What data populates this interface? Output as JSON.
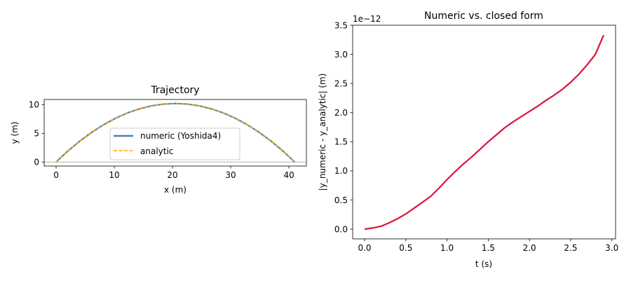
{
  "chart_data": [
    {
      "type": "line",
      "title": "Trajectory",
      "xlabel": "x (m)",
      "ylabel": "y (m)",
      "xlim": [
        -2.05,
        43.0
      ],
      "ylim": [
        -0.7,
        10.9
      ],
      "xticks": [
        0,
        10,
        20,
        30,
        40
      ],
      "yticks": [
        0,
        5,
        10
      ],
      "grid": false,
      "legend_position": "lower center",
      "ground_line": {
        "y": 0,
        "color": "#999999"
      },
      "series": [
        {
          "name": "numeric (Yoshida4)",
          "color": "#4682b4",
          "style": "solid",
          "x": [
            0,
            2.05,
            4.1,
            6.15,
            8.2,
            10.25,
            12.3,
            14.35,
            16.4,
            18.45,
            20.5,
            22.55,
            24.6,
            26.65,
            28.7,
            30.75,
            32.8,
            34.85,
            36.9,
            38.95,
            41.0
          ],
          "y": [
            0,
            1.94,
            3.67,
            5.2,
            6.52,
            7.65,
            8.57,
            9.28,
            9.79,
            10.1,
            10.2,
            10.1,
            9.79,
            9.28,
            8.57,
            7.65,
            6.52,
            5.2,
            3.67,
            1.94,
            0
          ]
        },
        {
          "name": "analytic",
          "color": "#ffa500",
          "style": "dashed",
          "x": [
            0,
            2.05,
            4.1,
            6.15,
            8.2,
            10.25,
            12.3,
            14.35,
            16.4,
            18.45,
            20.5,
            22.55,
            24.6,
            26.65,
            28.7,
            30.75,
            32.8,
            34.85,
            36.9,
            38.95,
            41.0
          ],
          "y": [
            0,
            1.94,
            3.67,
            5.2,
            6.52,
            7.65,
            8.57,
            9.28,
            9.79,
            10.1,
            10.2,
            10.1,
            9.79,
            9.28,
            8.57,
            7.65,
            6.52,
            5.2,
            3.67,
            1.94,
            0
          ]
        }
      ]
    },
    {
      "type": "line",
      "title": "Numeric vs. closed form",
      "xlabel": "t (s)",
      "ylabel": "|y_numeric - y_analytic| (m)",
      "offset_text": "1e−12",
      "xlim": [
        -0.145,
        3.045
      ],
      "ylim": [
        -0.167,
        3.5
      ],
      "xticks": [
        0.0,
        0.5,
        1.0,
        1.5,
        2.0,
        2.5,
        3.0
      ],
      "xtick_labels": [
        "0.0",
        "0.5",
        "1.0",
        "1.5",
        "2.0",
        "2.5",
        "3.0"
      ],
      "yticks": [
        0.0,
        0.5,
        1.0,
        1.5,
        2.0,
        2.5,
        3.0,
        3.5
      ],
      "ytick_labels": [
        "0.0",
        "0.5",
        "1.0",
        "1.5",
        "2.0",
        "2.5",
        "3.0",
        "3.5"
      ],
      "grid": false,
      "series": [
        {
          "color": "#dc143c",
          "style": "solid",
          "x": [
            0.0,
            0.1,
            0.2,
            0.3,
            0.4,
            0.5,
            0.6,
            0.7,
            0.8,
            0.9,
            1.0,
            1.1,
            1.2,
            1.3,
            1.4,
            1.5,
            1.6,
            1.7,
            1.8,
            1.9,
            2.0,
            2.1,
            2.2,
            2.3,
            2.4,
            2.5,
            2.6,
            2.7,
            2.8,
            2.9
          ],
          "y": [
            0.0,
            0.02,
            0.05,
            0.11,
            0.18,
            0.26,
            0.36,
            0.46,
            0.56,
            0.7,
            0.85,
            0.99,
            1.12,
            1.24,
            1.37,
            1.5,
            1.62,
            1.74,
            1.84,
            1.93,
            2.02,
            2.11,
            2.21,
            2.3,
            2.4,
            2.52,
            2.66,
            2.82,
            3.0,
            3.33
          ]
        }
      ]
    }
  ]
}
